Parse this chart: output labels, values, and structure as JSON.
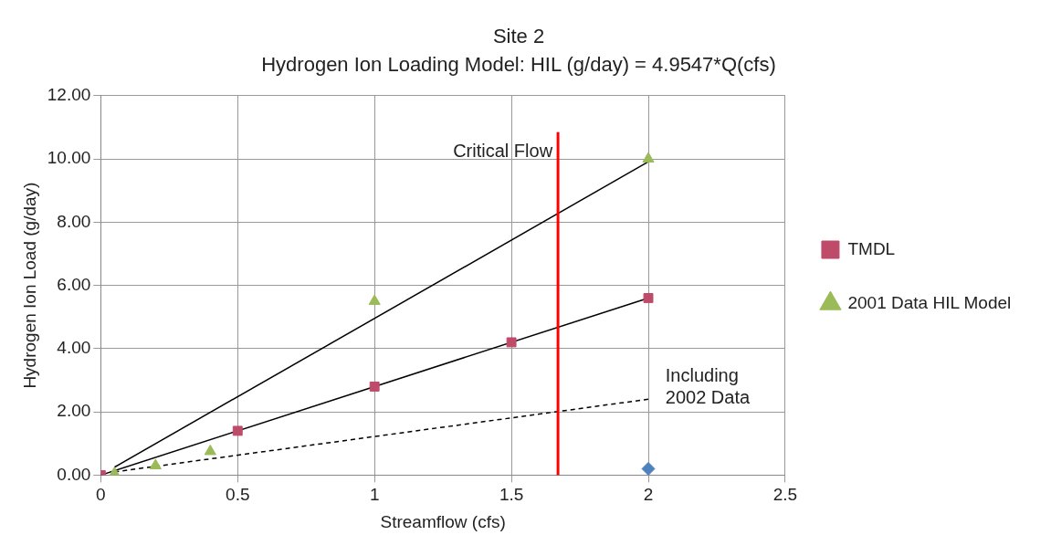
{
  "chart_data": {
    "type": "scatter",
    "title": "Site 2",
    "subtitle": "Hydrogen Ion Loading Model: HIL (g/day) = 4.9547*Q(cfs)",
    "xlabel": "Streamflow (cfs)",
    "ylabel": "Hydrogen Ion Load (g/day)",
    "xlim": [
      0,
      2.5
    ],
    "xticks": [
      0,
      0.5,
      1,
      1.5,
      2,
      2.5
    ],
    "ylim": [
      0,
      12
    ],
    "yticks": [
      {
        "value": 0,
        "label": "0.00"
      },
      {
        "value": 2,
        "label": "2.00"
      },
      {
        "value": 4,
        "label": "4.00"
      },
      {
        "value": 6,
        "label": "6.00"
      },
      {
        "value": 8,
        "label": "8.00"
      },
      {
        "value": 10,
        "label": "10.00"
      },
      {
        "value": 12,
        "label": "12.00"
      }
    ],
    "grid": true,
    "legend": "right",
    "series": [
      {
        "type": "line",
        "color": "#000000",
        "marker": "none",
        "line_style": "solid",
        "x": [
          0.05,
          2
        ],
        "values": [
          0.25,
          9.91
        ]
      },
      {
        "type": "line",
        "color": "#000000",
        "marker": "none",
        "line_style": "solid",
        "x": [
          0,
          2
        ],
        "values": [
          0,
          5.6
        ]
      },
      {
        "type": "line",
        "color": "#000000",
        "marker": "none",
        "line_style": "dashed",
        "x": [
          0.05,
          2
        ],
        "values": [
          0.1,
          2.4
        ]
      },
      {
        "name": "TMDL",
        "color": "#be4b6a",
        "marker": "square",
        "x": [
          0,
          0.5,
          1,
          1.5,
          2
        ],
        "values": [
          0,
          1.4,
          2.8,
          4.2,
          5.6
        ]
      },
      {
        "name": "2001 Data HIL Model",
        "color": "#9bbb59",
        "marker": "triangle",
        "x": [
          0.05,
          0.2,
          0.4,
          1,
          2
        ],
        "values": [
          0.05,
          0.3,
          0.75,
          5.5,
          10
        ]
      },
      {
        "color": "#4f81bd",
        "marker": "diamond",
        "x": [
          2
        ],
        "values": [
          0.2
        ]
      }
    ],
    "ref_lines": [
      {
        "axis": "x",
        "value": 1.67,
        "label": "Critical Flow",
        "color": "#ff0000"
      }
    ],
    "annotations": [
      "Including 2002 Data"
    ]
  }
}
